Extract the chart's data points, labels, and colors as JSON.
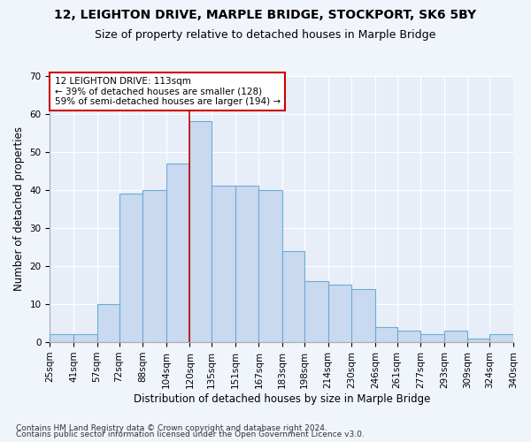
{
  "title": "12, LEIGHTON DRIVE, MARPLE BRIDGE, STOCKPORT, SK6 5BY",
  "subtitle": "Size of property relative to detached houses in Marple Bridge",
  "xlabel": "Distribution of detached houses by size in Marple Bridge",
  "ylabel": "Number of detached properties",
  "bar_color": "#c8d9f0",
  "bar_edge_color": "#6baed6",
  "background_color": "#e8eef8",
  "grid_color": "#ffffff",
  "annotation_text": "12 LEIGHTON DRIVE: 113sqm\n← 39% of detached houses are smaller (128)\n59% of semi-detached houses are larger (194) →",
  "annotation_box_color": "#ffffff",
  "annotation_box_edge": "#cc0000",
  "vline_color": "#cc0000",
  "vline_x": 120,
  "footer1": "Contains HM Land Registry data © Crown copyright and database right 2024.",
  "footer2": "Contains public sector information licensed under the Open Government Licence v3.0.",
  "bin_edges": [
    25,
    41,
    57,
    72,
    88,
    104,
    120,
    135,
    151,
    167,
    183,
    198,
    214,
    230,
    246,
    261,
    277,
    293,
    309,
    324,
    340
  ],
  "bar_heights": [
    2,
    2,
    10,
    39,
    40,
    47,
    58,
    41,
    41,
    40,
    24,
    16,
    15,
    14,
    4,
    3,
    2,
    3,
    1,
    2
  ],
  "ylim": [
    0,
    70
  ],
  "yticks": [
    0,
    10,
    20,
    30,
    40,
    50,
    60,
    70
  ],
  "title_fontsize": 10,
  "subtitle_fontsize": 9,
  "xlabel_fontsize": 8.5,
  "ylabel_fontsize": 8.5,
  "tick_fontsize": 7.5,
  "footer_fontsize": 6.5,
  "fig_width": 6.0,
  "fig_height": 5.0
}
